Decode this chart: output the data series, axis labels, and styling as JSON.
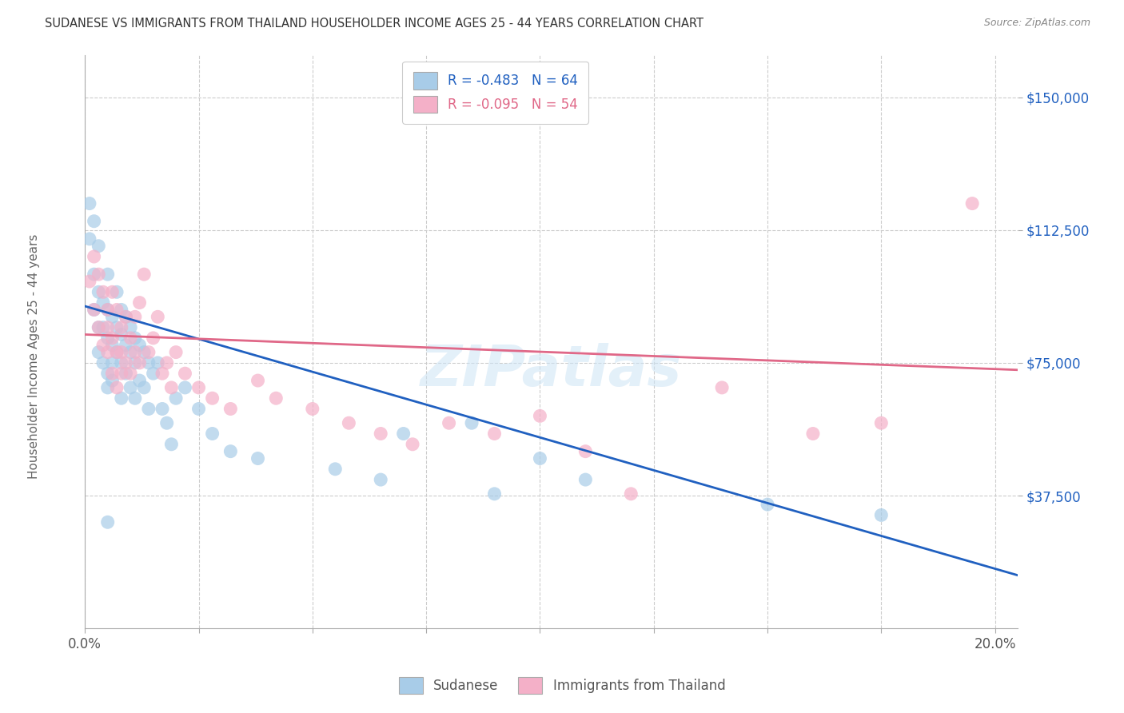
{
  "title": "SUDANESE VS IMMIGRANTS FROM THAILAND HOUSEHOLDER INCOME AGES 25 - 44 YEARS CORRELATION CHART",
  "source": "Source: ZipAtlas.com",
  "ylabel": "Householder Income Ages 25 - 44 years",
  "xlim": [
    0.0,
    0.205
  ],
  "ylim": [
    0,
    162000
  ],
  "xlabel_shown": [
    "0.0%",
    "20.0%"
  ],
  "xlabel_vals_shown": [
    0.0,
    0.2
  ],
  "ylabel_ticks": [
    "$37,500",
    "$75,000",
    "$112,500",
    "$150,000"
  ],
  "ylabel_vals": [
    37500,
    75000,
    112500,
    150000
  ],
  "legend1_label": "R = -0.483   N = 64",
  "legend2_label": "R = -0.095   N = 54",
  "legend_bottom_label1": "Sudanese",
  "legend_bottom_label2": "Immigrants from Thailand",
  "sudanese_color": "#a8cce8",
  "thailand_color": "#f4b0c8",
  "sudanese_line_color": "#2060c0",
  "thailand_line_color": "#e06888",
  "watermark": "ZIPatlas",
  "sudanese_line_x0": 0.0,
  "sudanese_line_y0": 91000,
  "sudanese_line_x1": 0.205,
  "sudanese_line_y1": 15000,
  "thailand_line_x0": 0.0,
  "thailand_line_y0": 83000,
  "thailand_line_x1": 0.205,
  "thailand_line_y1": 73000,
  "sudanese_x": [
    0.001,
    0.001,
    0.002,
    0.002,
    0.002,
    0.003,
    0.003,
    0.003,
    0.003,
    0.004,
    0.004,
    0.004,
    0.005,
    0.005,
    0.005,
    0.005,
    0.005,
    0.006,
    0.006,
    0.006,
    0.006,
    0.007,
    0.007,
    0.007,
    0.008,
    0.008,
    0.008,
    0.008,
    0.009,
    0.009,
    0.009,
    0.01,
    0.01,
    0.01,
    0.011,
    0.011,
    0.011,
    0.012,
    0.012,
    0.013,
    0.013,
    0.014,
    0.014,
    0.015,
    0.016,
    0.017,
    0.018,
    0.019,
    0.02,
    0.022,
    0.025,
    0.028,
    0.032,
    0.038,
    0.055,
    0.065,
    0.07,
    0.085,
    0.09,
    0.1,
    0.11,
    0.15,
    0.175,
    0.005
  ],
  "sudanese_y": [
    120000,
    110000,
    100000,
    115000,
    90000,
    108000,
    95000,
    85000,
    78000,
    92000,
    85000,
    75000,
    100000,
    90000,
    82000,
    72000,
    68000,
    88000,
    80000,
    75000,
    70000,
    95000,
    85000,
    78000,
    90000,
    83000,
    75000,
    65000,
    88000,
    80000,
    72000,
    85000,
    78000,
    68000,
    82000,
    75000,
    65000,
    80000,
    70000,
    78000,
    68000,
    75000,
    62000,
    72000,
    75000,
    62000,
    58000,
    52000,
    65000,
    68000,
    62000,
    55000,
    50000,
    48000,
    45000,
    42000,
    55000,
    58000,
    38000,
    48000,
    42000,
    35000,
    32000,
    30000
  ],
  "thailand_x": [
    0.001,
    0.002,
    0.002,
    0.003,
    0.003,
    0.004,
    0.004,
    0.005,
    0.005,
    0.006,
    0.006,
    0.007,
    0.007,
    0.008,
    0.008,
    0.009,
    0.009,
    0.01,
    0.01,
    0.011,
    0.011,
    0.012,
    0.012,
    0.013,
    0.014,
    0.015,
    0.016,
    0.017,
    0.018,
    0.019,
    0.02,
    0.022,
    0.025,
    0.028,
    0.032,
    0.038,
    0.042,
    0.05,
    0.058,
    0.065,
    0.072,
    0.08,
    0.09,
    0.1,
    0.11,
    0.12,
    0.14,
    0.16,
    0.175,
    0.195,
    0.005,
    0.006,
    0.007,
    0.008
  ],
  "thailand_y": [
    98000,
    105000,
    90000,
    100000,
    85000,
    95000,
    80000,
    90000,
    78000,
    95000,
    82000,
    90000,
    78000,
    85000,
    72000,
    88000,
    75000,
    82000,
    72000,
    88000,
    78000,
    92000,
    75000,
    100000,
    78000,
    82000,
    88000,
    72000,
    75000,
    68000,
    78000,
    72000,
    68000,
    65000,
    62000,
    70000,
    65000,
    62000,
    58000,
    55000,
    52000,
    58000,
    55000,
    60000,
    50000,
    38000,
    68000,
    55000,
    58000,
    120000,
    85000,
    72000,
    68000,
    78000
  ]
}
